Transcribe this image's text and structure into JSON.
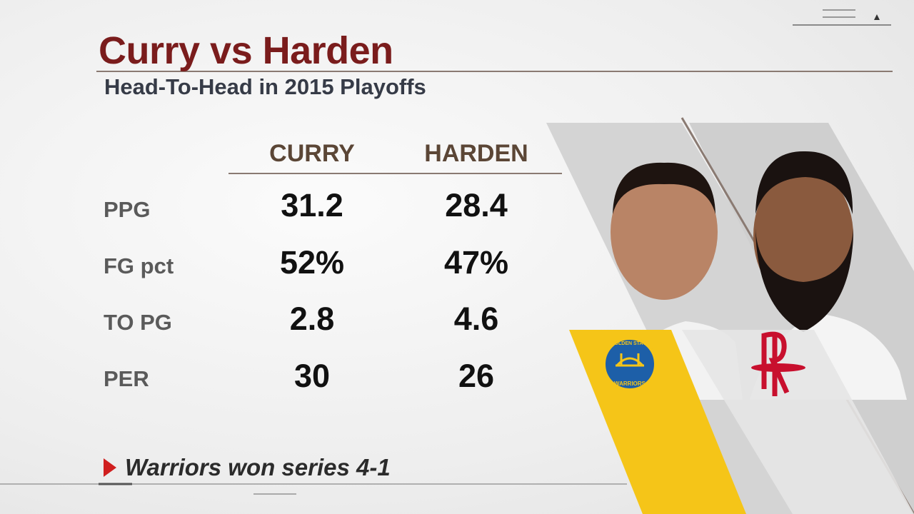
{
  "header": {
    "title": "Curry vs Harden",
    "subtitle": "Head-To-Head in 2015 Playoffs"
  },
  "table": {
    "columns": [
      "CURRY",
      "HARDEN"
    ],
    "rows": [
      [
        "PPG",
        "31.2",
        "28.4"
      ],
      [
        "FG pct",
        "52%",
        "47%"
      ],
      [
        "TO PG",
        "2.8",
        "4.6"
      ],
      [
        "PER",
        "30",
        "26"
      ]
    ]
  },
  "note": "Warriors won series 4-1",
  "logo": {
    "top": "GOLDEN STATE",
    "bottom": "WARRIORS"
  }
}
